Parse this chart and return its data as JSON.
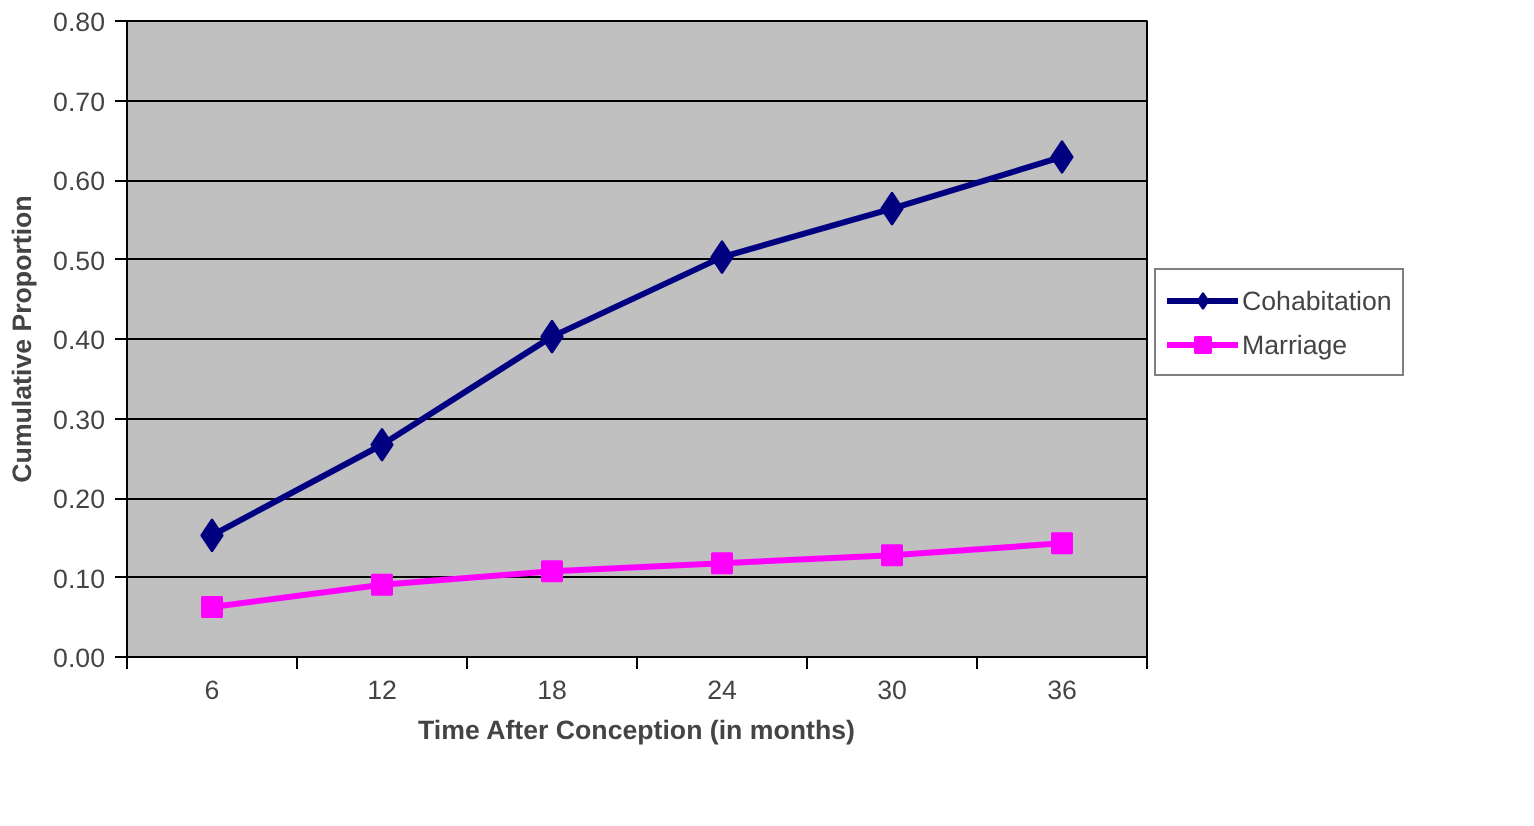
{
  "chart_data": {
    "type": "line",
    "xlabel": "Time After Conception (in months)",
    "ylabel": "Cumulative Proportion",
    "categories": [
      "6",
      "12",
      "18",
      "24",
      "30",
      "36"
    ],
    "series": [
      {
        "name": "Cohabitation",
        "color": "#000080",
        "marker": "diamond",
        "values": [
          0.153,
          0.267,
          0.403,
          0.503,
          0.564,
          0.629
        ]
      },
      {
        "name": "Marriage",
        "color": "#ff00ff",
        "marker": "square",
        "values": [
          0.063,
          0.091,
          0.108,
          0.118,
          0.128,
          0.143
        ]
      }
    ],
    "ylim": [
      0,
      0.8
    ],
    "yticks": [
      {
        "value": 0,
        "label": "0.00"
      },
      {
        "value": 0.1,
        "label": "0.10"
      },
      {
        "value": 0.2,
        "label": "0.20"
      },
      {
        "value": 0.3,
        "label": "0.30"
      },
      {
        "value": 0.4,
        "label": "0.40"
      },
      {
        "value": 0.5,
        "label": "0.50"
      },
      {
        "value": 0.6,
        "label": "0.60"
      },
      {
        "value": 0.7,
        "label": "0.70"
      },
      {
        "value": 0.8,
        "label": "0.80"
      }
    ],
    "grid": "y",
    "legend": "right",
    "line_style": "solid"
  }
}
